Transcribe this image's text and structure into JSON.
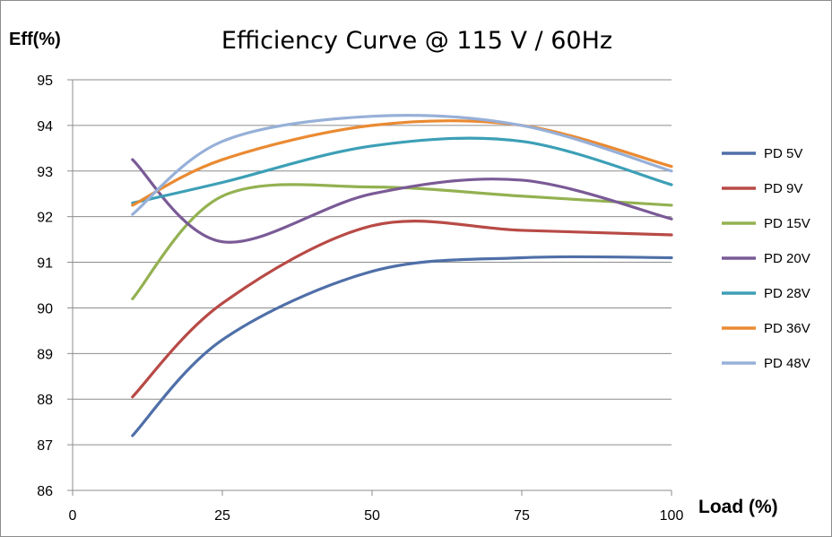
{
  "chart_data": {
    "type": "line",
    "title": "Efficiency Curve @ 115 V / 60Hz",
    "xlabel": "Load (%)",
    "ylabel": "Eff(%)",
    "xlim": [
      0,
      100
    ],
    "ylim": [
      86,
      95
    ],
    "x_ticks": [
      0,
      25,
      50,
      75,
      100
    ],
    "y_ticks": [
      86,
      87,
      88,
      89,
      90,
      91,
      92,
      93,
      94,
      95
    ],
    "grid": "horizontal",
    "legend_position": "right",
    "smooth": true,
    "x": [
      10,
      25,
      50,
      75,
      100
    ],
    "series": [
      {
        "name": "PD 5V",
        "color": "#4f6fa8",
        "values": [
          87.2,
          89.3,
          90.8,
          91.1,
          91.1
        ]
      },
      {
        "name": "PD 9V",
        "color": "#b84a46",
        "values": [
          88.05,
          90.1,
          91.8,
          91.7,
          91.6
        ]
      },
      {
        "name": "PD 15V",
        "color": "#93b151",
        "values": [
          90.2,
          92.45,
          92.65,
          92.45,
          92.25
        ]
      },
      {
        "name": "PD 20V",
        "color": "#7a5a96",
        "values": [
          93.25,
          91.45,
          92.5,
          92.8,
          91.95
        ]
      },
      {
        "name": "PD 28V",
        "color": "#3c9fb6",
        "values": [
          92.3,
          92.75,
          93.55,
          93.65,
          92.7
        ]
      },
      {
        "name": "PD 36V",
        "color": "#ea8a32",
        "values": [
          92.25,
          93.25,
          94.0,
          94.0,
          93.1
        ]
      },
      {
        "name": "PD 48V",
        "color": "#97b0d8",
        "values": [
          92.05,
          93.65,
          94.2,
          94.0,
          93.0
        ]
      }
    ]
  }
}
